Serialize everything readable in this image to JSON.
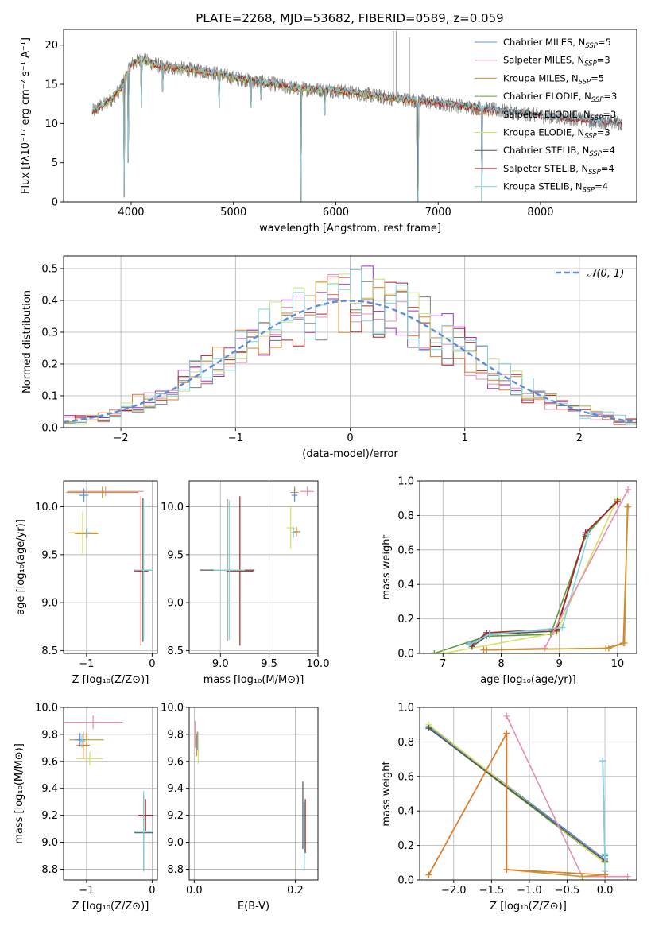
{
  "figure_title": "PLATE=2268, MJD=53682, FIBERID=0589, z=0.059",
  "colors": {
    "series": [
      "#5f8fd1",
      "#e88fb8",
      "#c8962e",
      "#5a9e3c",
      "#e07b2a",
      "#d9e05e",
      "#555555",
      "#b22222",
      "#7fd3e0"
    ],
    "data_spectrum": "#7f7f7f",
    "normal": "#5b8ed6",
    "hist": [
      "#9932cc",
      "#e88fb8",
      "#b22222",
      "#e07b2a",
      "#7f7f7f",
      "#c8e07f",
      "#7fd3e0"
    ]
  },
  "chart_data": [
    {
      "id": "spectrum",
      "type": "line",
      "title": "PLATE=2268, MJD=53682, FIBERID=0589, z=0.059",
      "xlabel": "wavelength [Angstrom, rest frame]",
      "ylabel": "Flux [fλ10⁻¹⁷ erg cm⁻² s⁻¹ A⁻¹]",
      "xlim": [
        3340,
        8940
      ],
      "ylim": [
        0,
        22
      ],
      "xticks": [
        4000,
        5000,
        6000,
        7000,
        8000
      ],
      "yticks": [
        0,
        5,
        10,
        15,
        20
      ],
      "legend_position": "top-right",
      "legend": [
        {
          "main": "Chabrier MILES, N",
          "sub": "SSP",
          "tail": "=5"
        },
        {
          "main": "Salpeter MILES, N",
          "sub": "SSP",
          "tail": "=3"
        },
        {
          "main": "Kroupa MILES, N",
          "sub": "SSP",
          "tail": "=5"
        },
        {
          "main": "Chabrier ELODIE, N",
          "sub": "SSP",
          "tail": "=3"
        },
        {
          "main": "Salpeter ELODIE, N",
          "sub": "SSP",
          "tail": "=3"
        },
        {
          "main": "Kroupa ELODIE, N",
          "sub": "SSP",
          "tail": "=3"
        },
        {
          "main": "Chabrier STELIB, N",
          "sub": "SSP",
          "tail": "=4"
        },
        {
          "main": "Salpeter STELIB, N",
          "sub": "SSP",
          "tail": "=4"
        },
        {
          "main": "Kroupa STELIB, N",
          "sub": "SSP",
          "tail": "=4"
        }
      ],
      "continuum": [
        [
          3620,
          11.5
        ],
        [
          3800,
          13
        ],
        [
          3900,
          14.5
        ],
        [
          4000,
          17.5
        ],
        [
          4100,
          18.2
        ],
        [
          4300,
          17.2
        ],
        [
          4500,
          17
        ],
        [
          4800,
          16.5
        ],
        [
          5000,
          15.8
        ],
        [
          5300,
          15.2
        ],
        [
          5600,
          14.5
        ],
        [
          6000,
          14.2
        ],
        [
          6500,
          13.3
        ],
        [
          7000,
          12.6
        ],
        [
          7500,
          11.8
        ],
        [
          8000,
          11
        ],
        [
          8500,
          10.4
        ],
        [
          8800,
          10
        ]
      ],
      "absorption": [
        [
          3934,
          0.6
        ],
        [
          3969,
          5
        ],
        [
          4102,
          12
        ],
        [
          4305,
          14
        ],
        [
          4861,
          12
        ],
        [
          5175,
          12
        ],
        [
          5270,
          13
        ],
        [
          5660,
          0
        ],
        [
          5893,
          11
        ],
        [
          6563,
          14
        ],
        [
          6800,
          0
        ],
        [
          7430,
          0
        ],
        [
          8500,
          9.2
        ]
      ],
      "emission": [
        [
          6563,
          21.8
        ],
        [
          6590,
          21.8
        ],
        [
          6720,
          21
        ]
      ]
    },
    {
      "id": "residuals",
      "type": "line",
      "xlabel": "(data-model)/error",
      "ylabel": "Normed distribution",
      "xlim": [
        -2.5,
        2.5
      ],
      "ylim": [
        0,
        0.54
      ],
      "xticks": [
        -2,
        -1,
        0,
        1,
        2
      ],
      "xtick_labels": [
        "−2",
        "−1",
        "0",
        "1",
        "2"
      ],
      "yticks": [
        0,
        0.1,
        0.2,
        0.3,
        0.4,
        0.5
      ],
      "grid": true,
      "legend_position": "top-right",
      "legend": [
        "𝒩(0, 1)"
      ],
      "bin_edges": [
        -2.5,
        2.5
      ],
      "bin_count": 50,
      "normal_curve": {
        "mu": 0,
        "sigma": 1
      }
    },
    {
      "id": "age-vs-Z",
      "type": "scatter",
      "xlabel": "Z [log₁₀(Z/Z⊙)]",
      "ylabel": "age  [log₁₀(age/yr)]",
      "xlim": [
        -1.35,
        0.08
      ],
      "ylim": [
        8.47,
        10.27
      ],
      "xticks": [
        -1,
        0
      ],
      "xtick_labels": [
        "−1",
        "0"
      ],
      "yticks": [
        8.5,
        9.0,
        9.5,
        10.0
      ],
      "grid": true,
      "crosses": [
        {
          "x": -0.71,
          "y": 10.16,
          "xerr": 0.58,
          "yerr": 0.05,
          "c": 1
        },
        {
          "x": -0.76,
          "y": 10.15,
          "xerr": 0.55,
          "yerr": 0.06,
          "c": 2
        },
        {
          "x": -1.04,
          "y": 10.12,
          "xerr": 0.07,
          "yerr": 0.07,
          "c": 0
        },
        {
          "x": -1.06,
          "y": 9.73,
          "xerr": 0.22,
          "yerr": 0.22,
          "c": 5
        },
        {
          "x": -1.0,
          "y": 9.72,
          "xerr": 0.18,
          "yerr": 0.05,
          "c": 4
        },
        {
          "x": -0.99,
          "y": 9.73,
          "xerr": 0.06,
          "yerr": 0.05,
          "c": 8
        },
        {
          "x": -0.14,
          "y": 9.34,
          "xerr": 0.14,
          "yerr": 0.75,
          "c": 6
        },
        {
          "x": -0.17,
          "y": 9.33,
          "xerr": 0.11,
          "yerr": 0.78,
          "c": 7
        },
        {
          "x": -0.13,
          "y": 9.34,
          "xerr": 0.14,
          "yerr": 0.73,
          "c": 8
        }
      ]
    },
    {
      "id": "age-vs-mass",
      "type": "scatter",
      "xlabel": "mass [log₁₀(M/M⊙)]",
      "ylabel": "",
      "xlim": [
        8.68,
        10.0
      ],
      "ylim": [
        8.47,
        10.27
      ],
      "xticks": [
        9.0,
        9.5,
        10.0
      ],
      "yticks": [
        8.5,
        9.0,
        9.5,
        10.0
      ],
      "grid": true,
      "crosses": [
        {
          "x": 9.89,
          "y": 10.16,
          "xerr": 0.07,
          "yerr": 0.05,
          "c": 1
        },
        {
          "x": 9.76,
          "y": 10.15,
          "xerr": 0.04,
          "yerr": 0.06,
          "c": 2
        },
        {
          "x": 9.76,
          "y": 10.12,
          "xerr": 0.03,
          "yerr": 0.07,
          "c": 0
        },
        {
          "x": 9.72,
          "y": 9.78,
          "xerr": 0.04,
          "yerr": 0.22,
          "c": 5
        },
        {
          "x": 9.78,
          "y": 9.74,
          "xerr": 0.04,
          "yerr": 0.05,
          "c": 4
        },
        {
          "x": 9.75,
          "y": 9.73,
          "xerr": 0.03,
          "yerr": 0.05,
          "c": 8
        },
        {
          "x": 9.07,
          "y": 9.34,
          "xerr": 0.28,
          "yerr": 0.74,
          "c": 6
        },
        {
          "x": 9.2,
          "y": 9.33,
          "xerr": 0.14,
          "yerr": 0.78,
          "c": 7
        },
        {
          "x": 9.09,
          "y": 9.34,
          "xerr": 0.16,
          "yerr": 0.73,
          "c": 8
        }
      ]
    },
    {
      "id": "weight-vs-age",
      "type": "line",
      "xlabel": "age  [log₁₀(age/yr)]",
      "ylabel": "mass weight",
      "xlim": [
        6.6,
        10.33
      ],
      "ylim": [
        0,
        1.0
      ],
      "xticks": [
        7,
        8,
        9,
        10
      ],
      "yticks": [
        0,
        0.2,
        0.4,
        0.6,
        0.8,
        1.0
      ],
      "grid": true,
      "series": [
        {
          "c": 0,
          "x": [
            7.45,
            7.8,
            8.95,
            9.45,
            10.0
          ],
          "y": [
            0.055,
            0.12,
            0.14,
            0.69,
            0.89
          ]
        },
        {
          "c": 3,
          "x": [
            6.85,
            7.75,
            8.85,
            9.45,
            10.0
          ],
          "y": [
            0.0,
            0.1,
            0.11,
            0.68,
            0.89
          ]
        },
        {
          "c": 5,
          "x": [
            7.0,
            8.95,
            10.0
          ],
          "y": [
            0.0,
            0.12,
            0.9
          ]
        },
        {
          "c": 6,
          "x": [
            7.5,
            7.8,
            8.95,
            9.45,
            10.0
          ],
          "y": [
            0.04,
            0.11,
            0.13,
            0.7,
            0.88
          ]
        },
        {
          "c": 7,
          "x": [
            7.5,
            7.75,
            8.95,
            9.45,
            10.0
          ],
          "y": [
            0.05,
            0.12,
            0.14,
            0.7,
            0.88
          ]
        },
        {
          "c": 8,
          "x": [
            7.45,
            7.8,
            9.05,
            9.5
          ],
          "y": [
            0.05,
            0.11,
            0.15,
            0.69
          ]
        },
        {
          "c": 1,
          "x": [
            7.75,
            8.75,
            10.18
          ],
          "y": [
            0.02,
            0.03,
            0.95
          ]
        },
        {
          "c": 4,
          "x": [
            7.7,
            9.8,
            10.1,
            10.18
          ],
          "y": [
            0.02,
            0.03,
            0.06,
            0.85
          ]
        },
        {
          "c": 2,
          "x": [
            7.75,
            9.85,
            10.12,
            10.17
          ],
          "y": [
            0.02,
            0.03,
            0.06,
            0.85
          ]
        }
      ]
    },
    {
      "id": "mass-vs-Z",
      "type": "scatter",
      "xlabel": "Z [log₁₀(Z/Z⊙)]",
      "ylabel": "mass [log₁₀(M/M⊙)]",
      "xlim": [
        -1.35,
        0.08
      ],
      "ylim": [
        8.72,
        10.0
      ],
      "xticks": [
        -1,
        0
      ],
      "xtick_labels": [
        "−1",
        "0"
      ],
      "yticks": [
        8.8,
        9.0,
        9.2,
        9.4,
        9.6,
        9.8,
        10.0
      ],
      "grid": true,
      "crosses": [
        {
          "x": -0.9,
          "y": 9.89,
          "xerr": 0.45,
          "yerr": 0.05,
          "c": 1
        },
        {
          "x": -1.0,
          "y": 9.76,
          "xerr": 0.26,
          "yerr": 0.05,
          "c": 2
        },
        {
          "x": -1.1,
          "y": 9.76,
          "xerr": 0.08,
          "yerr": 0.05,
          "c": 0
        },
        {
          "x": -0.95,
          "y": 9.62,
          "xerr": 0.2,
          "yerr": 0.05,
          "c": 5
        },
        {
          "x": -1.05,
          "y": 9.72,
          "xerr": 0.1,
          "yerr": 0.1,
          "c": 4
        },
        {
          "x": -1.07,
          "y": 9.75,
          "xerr": 0.05,
          "yerr": 0.05,
          "c": 8
        },
        {
          "x": -0.13,
          "y": 9.07,
          "xerr": 0.14,
          "yerr": 0.28,
          "c": 6
        },
        {
          "x": -0.1,
          "y": 9.2,
          "xerr": 0.11,
          "yerr": 0.12,
          "c": 7
        },
        {
          "x": -0.13,
          "y": 9.08,
          "xerr": 0.14,
          "yerr": 0.3,
          "c": 8
        }
      ]
    },
    {
      "id": "mass-vs-EBV",
      "type": "scatter",
      "xlabel": "E(B-V)",
      "ylabel": "",
      "xlim": [
        -0.01,
        0.245
      ],
      "ylim": [
        8.72,
        10.0
      ],
      "xticks": [
        0.0,
        0.2
      ],
      "yticks": [
        8.8,
        9.0,
        9.2,
        9.4,
        9.6,
        9.8,
        10.0
      ],
      "grid": true,
      "crosses": [
        {
          "x": 0.002,
          "y": 9.8,
          "xerr": 0.0,
          "yerr": 0.1,
          "c": 1
        },
        {
          "x": 0.005,
          "y": 9.72,
          "xerr": 0.0,
          "yerr": 0.08,
          "c": 2
        },
        {
          "x": 0.008,
          "y": 9.7,
          "xerr": 0.0,
          "yerr": 0.12,
          "c": 5
        },
        {
          "x": 0.006,
          "y": 9.75,
          "xerr": 0.0,
          "yerr": 0.07,
          "c": 0
        },
        {
          "x": 0.215,
          "y": 9.2,
          "xerr": 0.0,
          "yerr": 0.25,
          "c": 6
        },
        {
          "x": 0.22,
          "y": 9.12,
          "xerr": 0.0,
          "yerr": 0.2,
          "c": 7
        },
        {
          "x": 0.218,
          "y": 9.05,
          "xerr": 0.0,
          "yerr": 0.25,
          "c": 8
        }
      ]
    },
    {
      "id": "weight-vs-Z",
      "type": "line",
      "xlabel": "Z [log₁₀(Z/Z⊙)]",
      "ylabel": "mass weight",
      "xlim": [
        -2.45,
        0.42
      ],
      "ylim": [
        0,
        1.0
      ],
      "xticks": [
        -2.0,
        -1.5,
        -1.0,
        -0.5,
        0.0
      ],
      "xtick_labels": [
        "−2.0",
        "−1.5",
        "−1.0",
        "−0.5",
        "0.0"
      ],
      "yticks": [
        0,
        0.2,
        0.4,
        0.6,
        0.8,
        1.0
      ],
      "grid": true,
      "series": [
        {
          "c": 0,
          "x": [
            -2.33,
            0.0,
            -0.03,
            -0.0
          ],
          "y": [
            0.89,
            0.12,
            0.69,
            0.14
          ]
        },
        {
          "c": 3,
          "x": [
            -2.33,
            0.0
          ],
          "y": [
            0.88,
            0.1
          ]
        },
        {
          "c": 5,
          "x": [
            -2.33,
            0.0
          ],
          "y": [
            0.9,
            0.1
          ]
        },
        {
          "c": 6,
          "x": [
            -2.33,
            0.0
          ],
          "y": [
            0.88,
            0.11
          ]
        },
        {
          "c": 8,
          "x": [
            -0.03,
            0.0,
            0.0
          ],
          "y": [
            0.69,
            0.15,
            0.05
          ]
        },
        {
          "c": 1,
          "x": [
            -1.3,
            -0.3,
            0.3
          ],
          "y": [
            0.95,
            0.02,
            0.02
          ]
        },
        {
          "c": 2,
          "x": [
            -2.33,
            -1.3,
            -1.3,
            0.0,
            -0.3,
            -1.3
          ],
          "y": [
            0.03,
            0.85,
            0.06,
            0.03,
            0.02,
            0.06
          ]
        },
        {
          "c": 4,
          "x": [
            -2.33,
            -1.3,
            -1.3,
            0.0
          ],
          "y": [
            0.03,
            0.85,
            0.06,
            0.03
          ]
        }
      ]
    }
  ]
}
